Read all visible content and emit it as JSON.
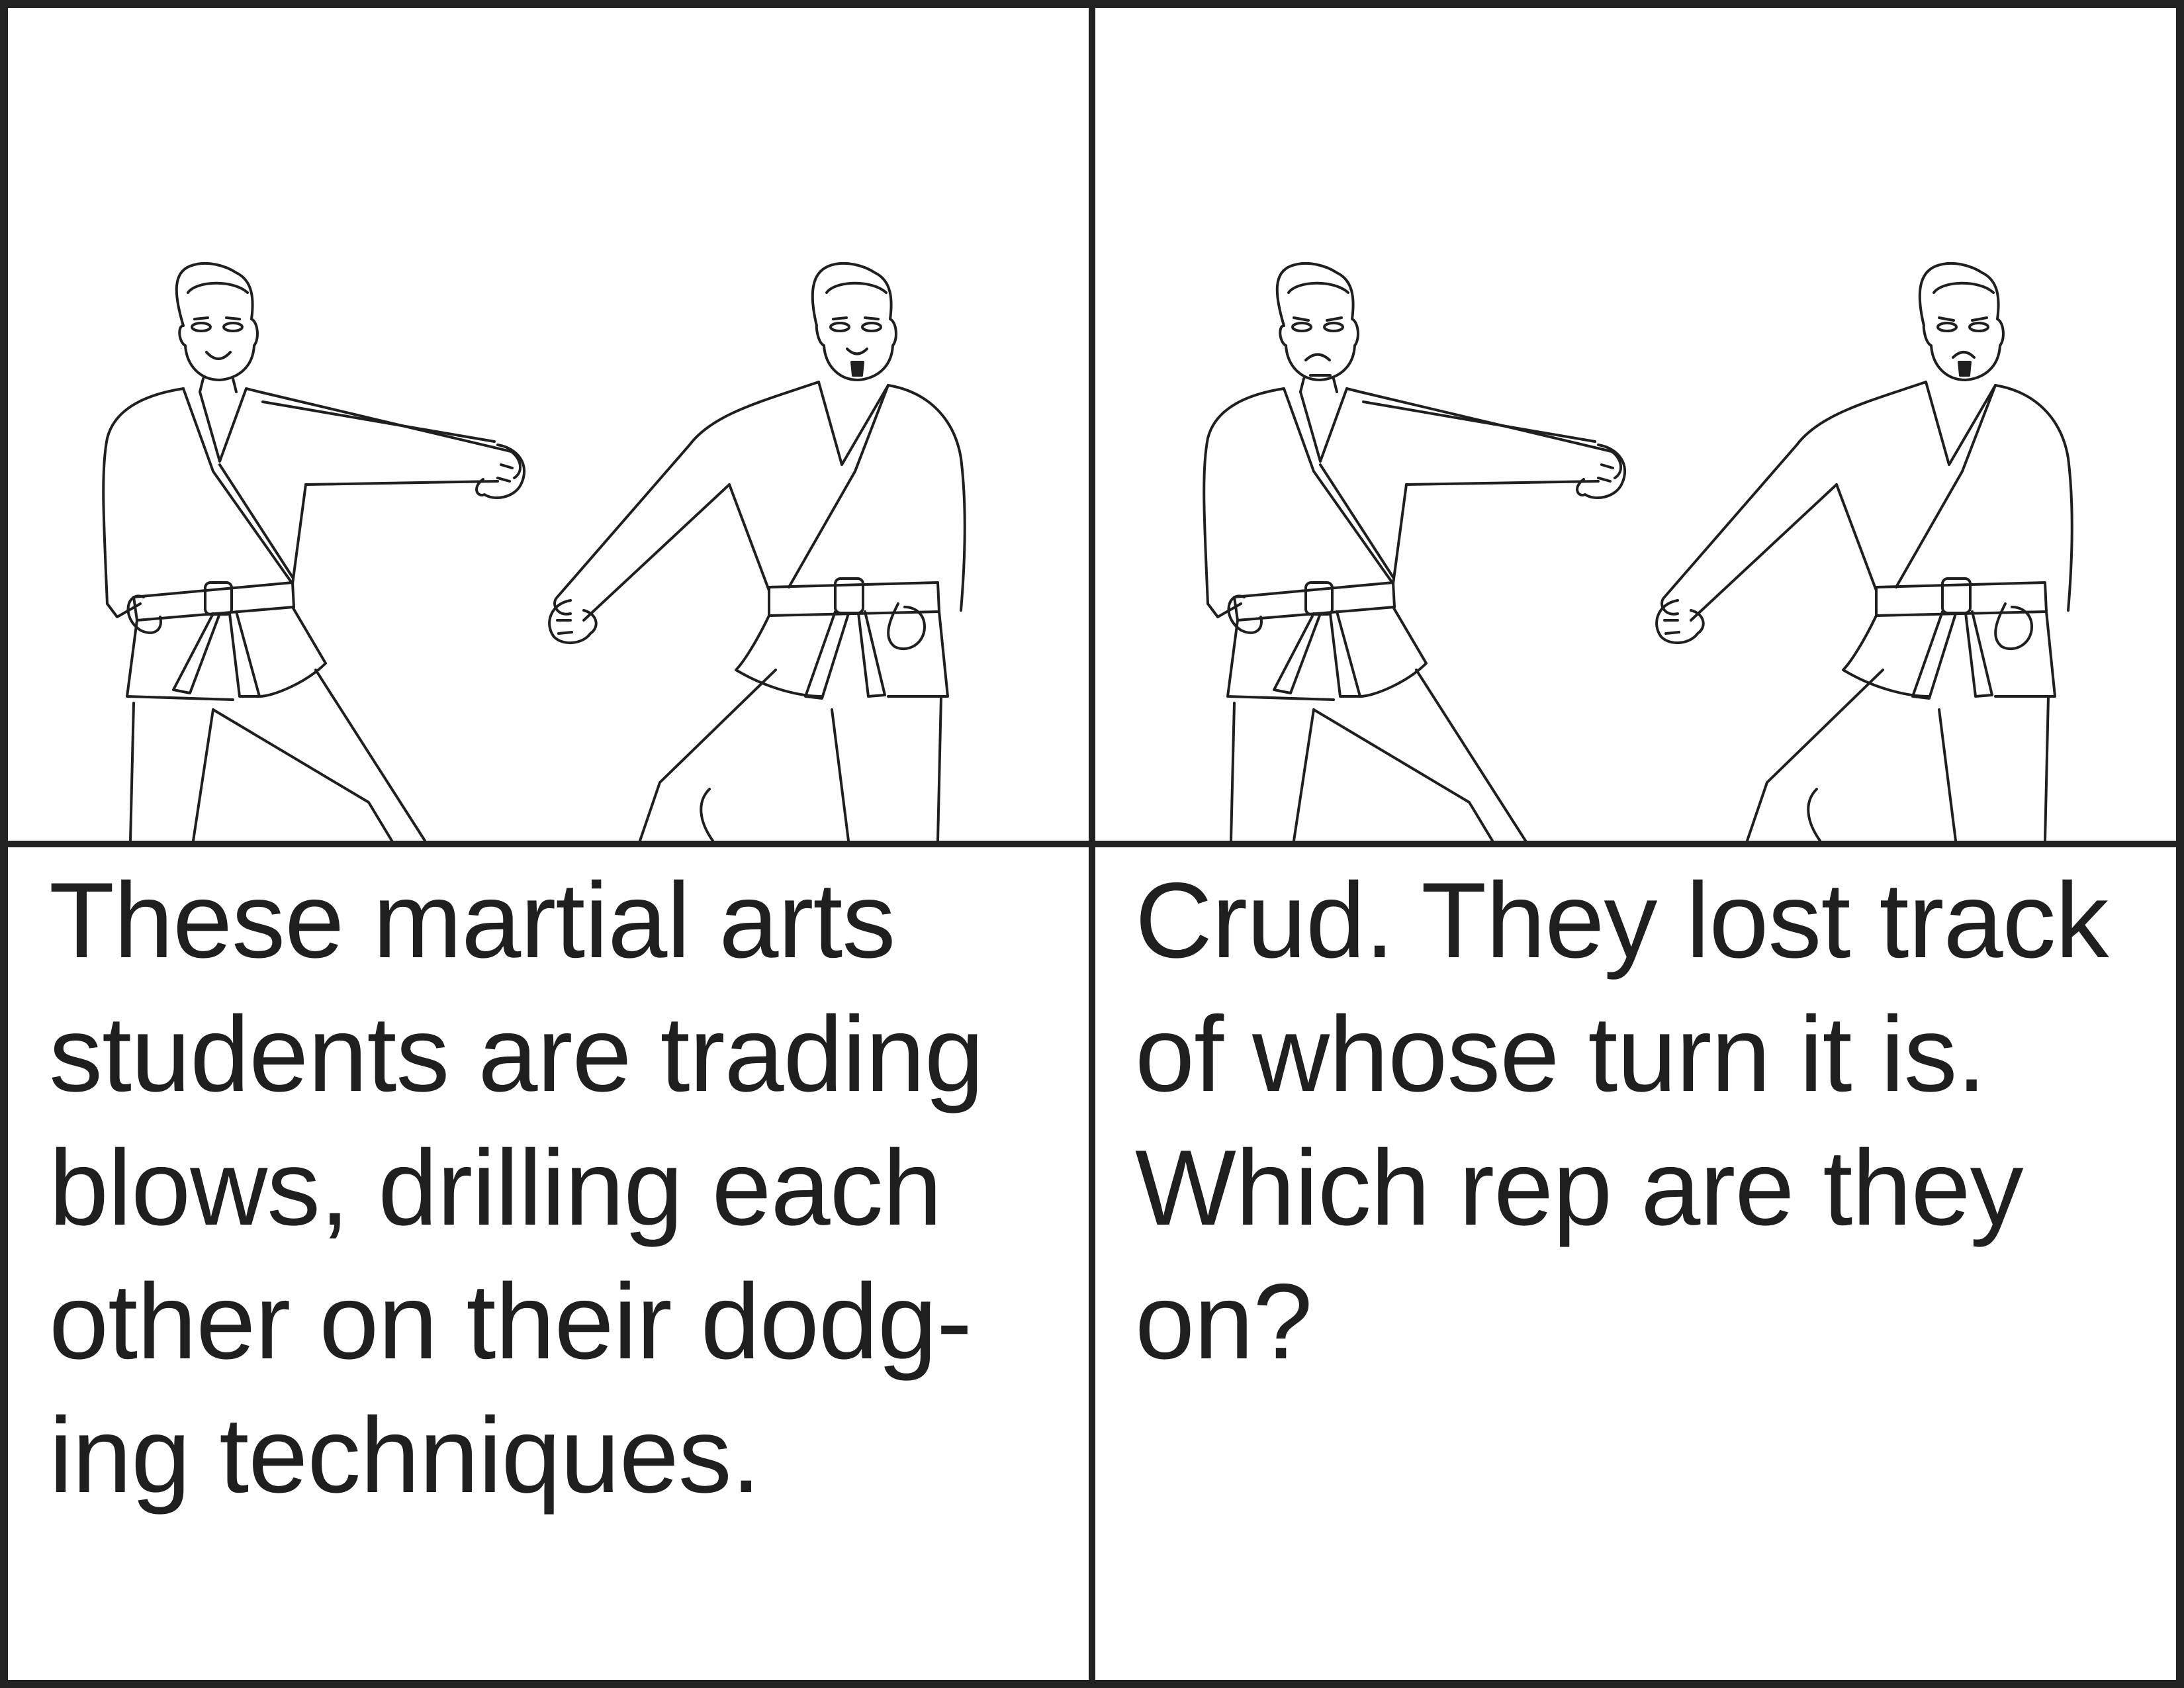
{
  "panels": [
    {
      "caption_lines": [
        "These martial arts",
        "students are trading",
        "blows, drilling each",
        "other on their dodg-",
        "ing techniques."
      ],
      "expression": "smiling"
    },
    {
      "caption_lines": [
        "Crud. They lost track",
        "of whose turn it is.",
        "Which rep are they",
        "on?"
      ],
      "expression": "frowning"
    }
  ],
  "colors": {
    "ink": "#1f1f1f",
    "background": "#ffffff"
  }
}
